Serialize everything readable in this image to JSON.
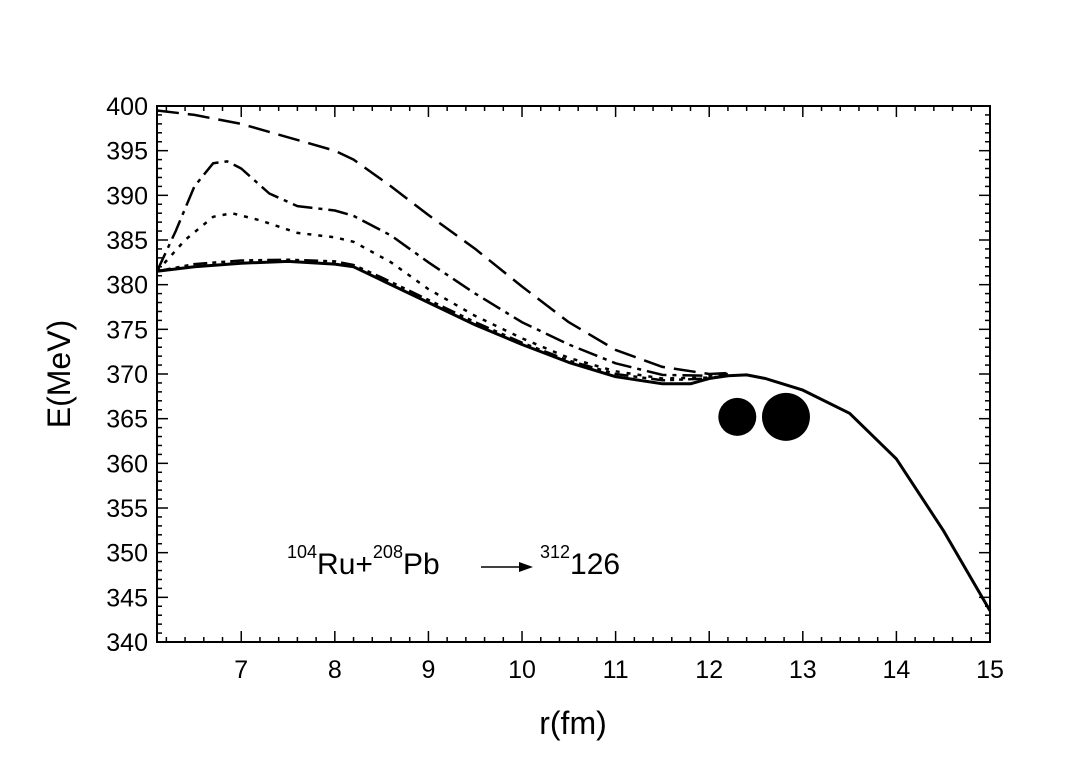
{
  "chart_data": {
    "type": "line",
    "title": "",
    "xlabel": "r(fm)",
    "ylabel": "E(MeV)",
    "xlim": [
      6.1,
      15
    ],
    "ylim": [
      340,
      400
    ],
    "x_ticks": [
      7,
      8,
      9,
      10,
      11,
      12,
      13,
      14,
      15
    ],
    "y_ticks": [
      340,
      345,
      350,
      355,
      360,
      365,
      370,
      375,
      380,
      385,
      390,
      395,
      400
    ],
    "grid": false,
    "legend": "none",
    "annotation": {
      "a1": "104",
      "s1": "Ru+",
      "a2": "208",
      "s2": "Pb",
      "a3": "312",
      "s3": "126"
    },
    "markers": [
      {
        "shape": "circle",
        "x": 12.3,
        "y": 365.2,
        "label": "small nucleus"
      },
      {
        "shape": "circle",
        "x": 12.82,
        "y": 365.2,
        "label": "large nucleus"
      }
    ],
    "series": [
      {
        "style": "solid",
        "x": [
          6.1,
          6.5,
          7.0,
          7.5,
          8.0,
          8.2,
          8.5,
          9.0,
          9.5,
          10.0,
          10.5,
          11.0,
          11.5,
          11.8,
          12.0,
          12.2,
          12.4,
          12.6,
          13.0,
          13.5,
          14.0,
          14.5,
          15.0
        ],
        "y": [
          381.5,
          382.0,
          382.4,
          382.6,
          382.3,
          382.0,
          380.5,
          378.0,
          375.5,
          373.3,
          371.3,
          369.7,
          368.9,
          368.9,
          369.5,
          369.8,
          369.9,
          369.5,
          368.2,
          365.6,
          360.5,
          352.5,
          343.5
        ]
      },
      {
        "style": "dash-dot-dot",
        "x": [
          6.1,
          6.5,
          7.0,
          7.5,
          8.0,
          8.2,
          8.5,
          9.0,
          9.5,
          10.0,
          10.5,
          11.0,
          11.5,
          12.0,
          12.2
        ],
        "y": [
          381.5,
          382.3,
          382.7,
          382.8,
          382.6,
          382.2,
          380.8,
          378.3,
          375.8,
          373.5,
          371.5,
          370.0,
          369.3,
          369.5,
          369.8
        ]
      },
      {
        "style": "dotted",
        "x": [
          6.1,
          6.4,
          6.7,
          6.9,
          7.2,
          7.6,
          8.0,
          8.2,
          8.6,
          9.0,
          9.5,
          10.0,
          10.5,
          11.0,
          11.5,
          12.0,
          12.2
        ],
        "y": [
          381.5,
          385.0,
          387.6,
          388.0,
          387.2,
          385.8,
          385.3,
          384.8,
          382.5,
          379.5,
          376.5,
          374.0,
          371.8,
          370.3,
          369.5,
          369.6,
          369.8
        ]
      },
      {
        "style": "dash-dot",
        "x": [
          6.1,
          6.3,
          6.5,
          6.7,
          6.85,
          7.0,
          7.3,
          7.6,
          8.0,
          8.2,
          8.6,
          9.0,
          9.5,
          10.0,
          10.5,
          11.0,
          11.5,
          12.0,
          12.2
        ],
        "y": [
          381.5,
          386.0,
          391.0,
          393.6,
          393.8,
          393.0,
          390.2,
          388.8,
          388.3,
          387.7,
          385.5,
          382.5,
          379.0,
          375.8,
          373.3,
          371.2,
          369.9,
          369.8,
          370.0
        ]
      },
      {
        "style": "dashed",
        "x": [
          6.1,
          6.5,
          7.0,
          7.5,
          8.0,
          8.2,
          8.6,
          9.0,
          9.5,
          10.0,
          10.5,
          11.0,
          11.5,
          12.0,
          12.2
        ],
        "y": [
          399.5,
          399.0,
          398.0,
          396.5,
          395.0,
          394.0,
          391.0,
          387.8,
          384.0,
          379.8,
          375.8,
          372.7,
          370.8,
          370.0,
          370.1
        ]
      }
    ]
  }
}
